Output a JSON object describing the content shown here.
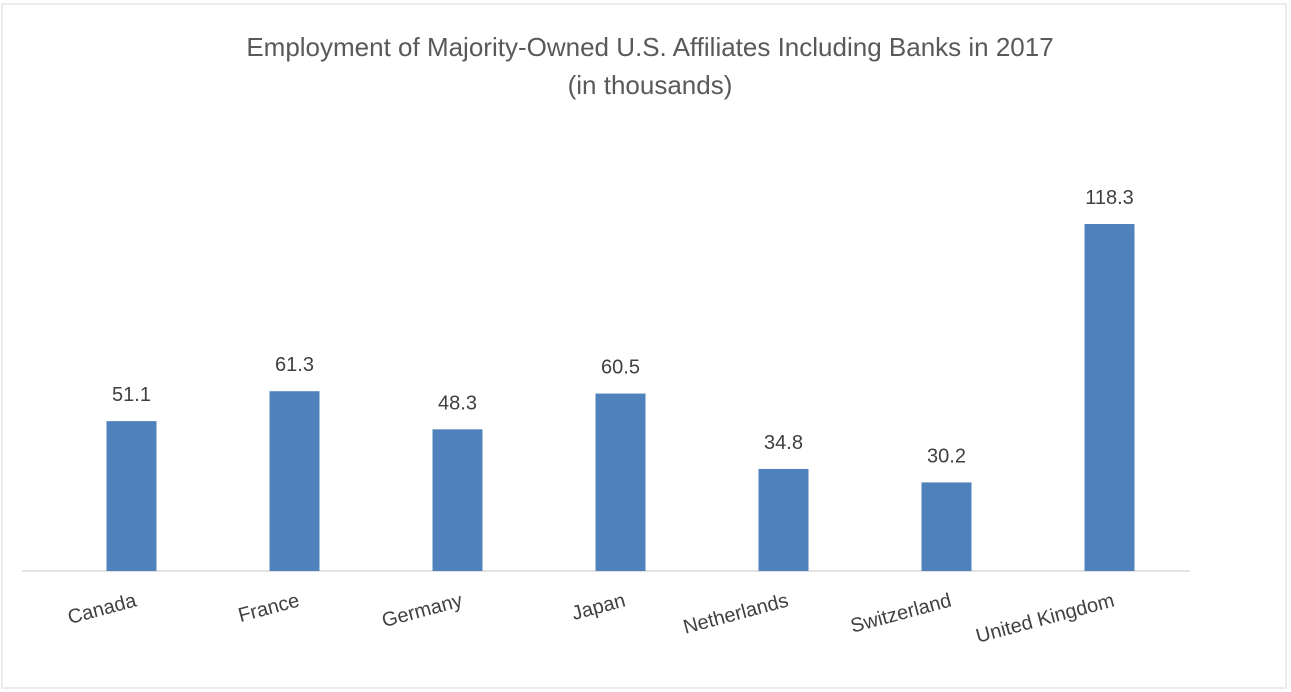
{
  "chart_data": {
    "type": "bar",
    "title": "Employment of Majority-Owned U.S. Affiliates Including Banks in 2017",
    "subtitle": "(in thousands)",
    "categories": [
      "Canada",
      "France",
      "Germany",
      "Japan",
      "Netherlands",
      "Switzerland",
      "United Kingdom"
    ],
    "values": [
      51.1,
      61.3,
      48.3,
      60.5,
      34.8,
      30.2,
      118.3
    ],
    "color": "#4f81bd"
  }
}
